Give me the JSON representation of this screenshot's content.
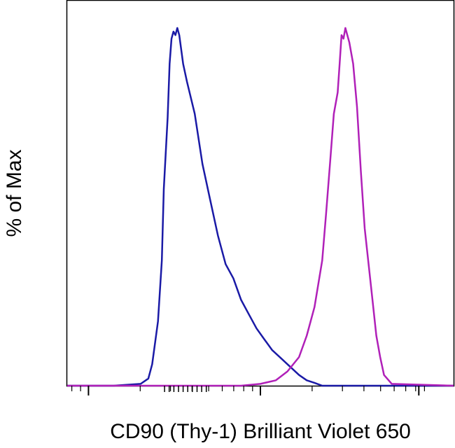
{
  "chart_data": {
    "type": "line",
    "title": "",
    "xlabel": "CD90 (Thy-1) Brilliant Violet 650",
    "ylabel": "% of Max",
    "x_scale": "log",
    "xlim": [
      0,
      1
    ],
    "ylim": [
      0,
      100
    ],
    "grid": false,
    "legend": "none",
    "series": [
      {
        "color": "#1a1aa6",
        "x": [
          0.0,
          0.12,
          0.19,
          0.21,
          0.22,
          0.235,
          0.245,
          0.25,
          0.26,
          0.265,
          0.27,
          0.275,
          0.28,
          0.285,
          0.29,
          0.3,
          0.31,
          0.33,
          0.35,
          0.37,
          0.39,
          0.41,
          0.43,
          0.45,
          0.47,
          0.49,
          0.51,
          0.53,
          0.55,
          0.57,
          0.6,
          0.62,
          0.64,
          0.66,
          1.0
        ],
        "y": [
          0,
          0,
          0.5,
          2,
          6,
          18,
          35,
          55,
          75,
          90,
          97,
          99,
          98,
          100,
          98,
          90,
          85,
          76,
          62,
          52,
          42,
          34,
          30,
          24,
          20,
          16,
          13,
          10,
          8,
          6,
          3,
          1.5,
          0.8,
          0,
          0
        ]
      },
      {
        "color": "#b020b8",
        "x": [
          0.0,
          0.45,
          0.5,
          0.54,
          0.57,
          0.6,
          0.62,
          0.64,
          0.66,
          0.67,
          0.68,
          0.69,
          0.7,
          0.705,
          0.71,
          0.715,
          0.72,
          0.73,
          0.74,
          0.75,
          0.76,
          0.77,
          0.79,
          0.8,
          0.81,
          0.82,
          0.84,
          1.0
        ],
        "y": [
          0,
          0,
          0.5,
          1.5,
          4,
          8,
          14,
          22,
          35,
          48,
          62,
          76,
          82,
          90,
          98,
          97,
          100,
          96,
          90,
          78,
          60,
          44,
          24,
          14,
          8,
          3,
          0.5,
          0
        ]
      }
    ]
  }
}
